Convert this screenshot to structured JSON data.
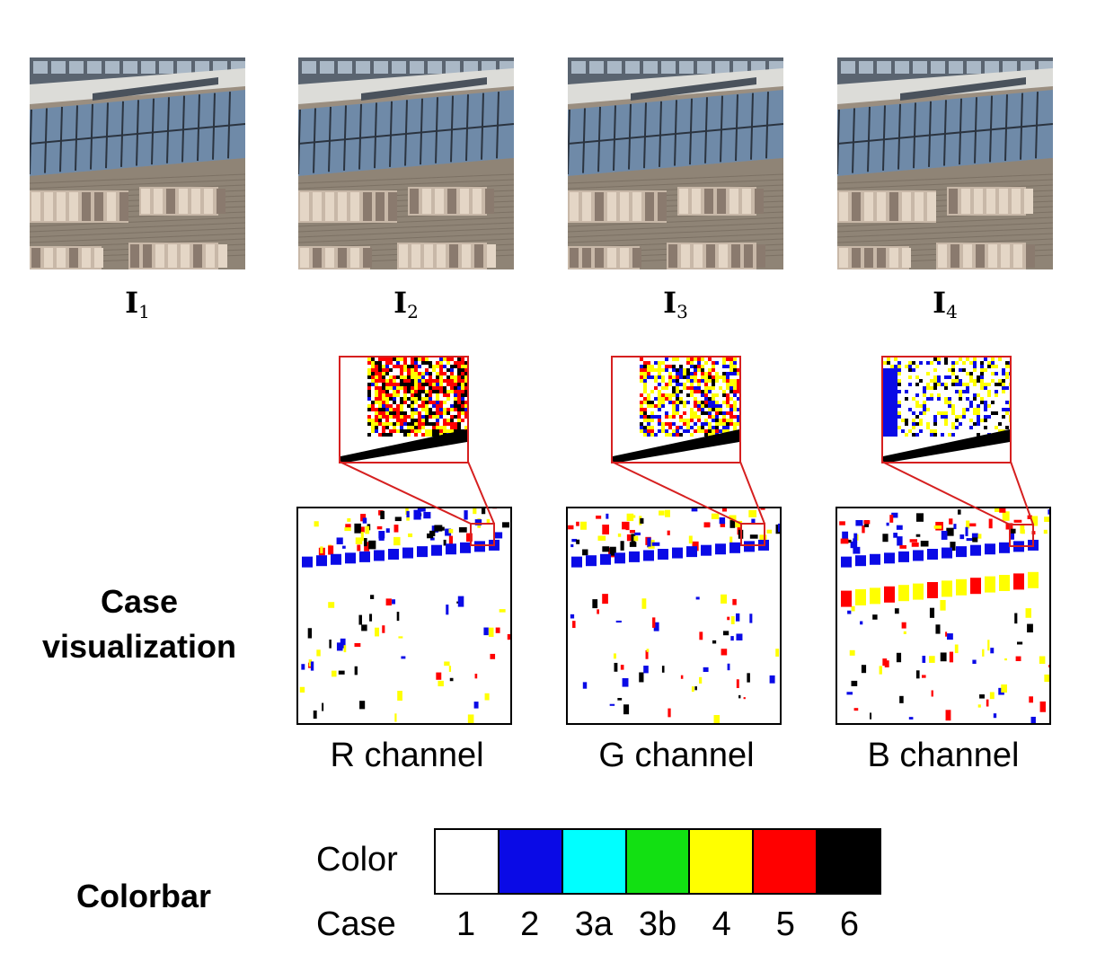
{
  "images": [
    {
      "base": "I",
      "sub": "1"
    },
    {
      "base": "I",
      "sub": "2"
    },
    {
      "base": "I",
      "sub": "3"
    },
    {
      "base": "I",
      "sub": "4"
    }
  ],
  "row_labels": {
    "case_visualization_line1": "Case",
    "case_visualization_line2": "visualization",
    "colorbar": "Colorbar"
  },
  "channels": [
    "R channel",
    "G channel",
    "B channel"
  ],
  "colorbar": {
    "color_label": "Color",
    "case_label": "Case",
    "entries": [
      {
        "case": "1",
        "color": "#ffffff"
      },
      {
        "case": "2",
        "color": "#0a0ae6"
      },
      {
        "case": "3a",
        "color": "#00ffff"
      },
      {
        "case": "3b",
        "color": "#12e012"
      },
      {
        "case": "4",
        "color": "#ffff00"
      },
      {
        "case": "5",
        "color": "#ff0000"
      },
      {
        "case": "6",
        "color": "#000000"
      }
    ]
  }
}
